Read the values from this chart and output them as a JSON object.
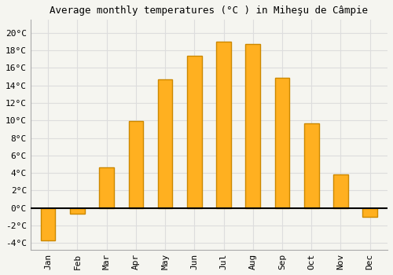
{
  "months": [
    "Jan",
    "Feb",
    "Mar",
    "Apr",
    "May",
    "Jun",
    "Jul",
    "Aug",
    "Sep",
    "Oct",
    "Nov",
    "Dec"
  ],
  "temperatures": [
    -3.7,
    -0.7,
    4.6,
    9.9,
    14.7,
    17.4,
    19.0,
    18.7,
    14.9,
    9.7,
    3.8,
    -1.0
  ],
  "bar_color": "#FFB020",
  "bar_edge_color": "#CC8800",
  "title": "Average monthly temperatures (°C ) in Miheşu de Câmpie",
  "ylim": [
    -4.8,
    21.5
  ],
  "yticks": [
    -4,
    -2,
    0,
    2,
    4,
    6,
    8,
    10,
    12,
    14,
    16,
    18,
    20
  ],
  "background_color": "#f5f5f0",
  "plot_bg_color": "#f5f5f0",
  "grid_color": "#dddddd",
  "title_fontsize": 9,
  "tick_fontsize": 8,
  "bar_width": 0.5
}
